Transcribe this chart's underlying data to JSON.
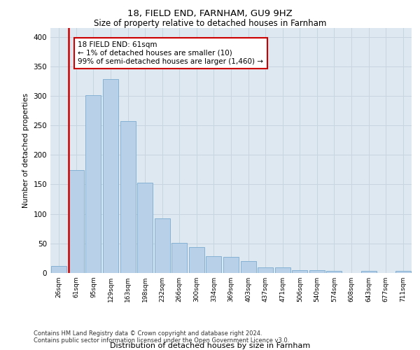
{
  "title1": "18, FIELD END, FARNHAM, GU9 9HZ",
  "title2": "Size of property relative to detached houses in Farnham",
  "xlabel": "Distribution of detached houses by size in Farnham",
  "ylabel": "Number of detached properties",
  "bar_values": [
    12,
    174,
    301,
    328,
    257,
    153,
    93,
    51,
    44,
    28,
    27,
    20,
    10,
    10,
    5,
    5,
    3,
    0,
    4,
    0,
    3
  ],
  "bar_labels": [
    "26sqm",
    "61sqm",
    "95sqm",
    "129sqm",
    "163sqm",
    "198sqm",
    "232sqm",
    "266sqm",
    "300sqm",
    "334sqm",
    "369sqm",
    "403sqm",
    "437sqm",
    "471sqm",
    "506sqm",
    "540sqm",
    "574sqm",
    "608sqm",
    "643sqm",
    "677sqm",
    "711sqm"
  ],
  "highlight_bar_index": 1,
  "highlight_color": "#cc0000",
  "bar_color": "#b8d0e8",
  "bar_edge_color": "#7aabcf",
  "grid_color": "#c8d4e0",
  "background_color": "#dde8f0",
  "annotation_text": "18 FIELD END: 61sqm\n← 1% of detached houses are smaller (10)\n99% of semi-detached houses are larger (1,460) →",
  "ylim": [
    0,
    415
  ],
  "yticks": [
    0,
    50,
    100,
    150,
    200,
    250,
    300,
    350,
    400
  ],
  "footer1": "Contains HM Land Registry data © Crown copyright and database right 2024.",
  "footer2": "Contains public sector information licensed under the Open Government Licence v3.0."
}
